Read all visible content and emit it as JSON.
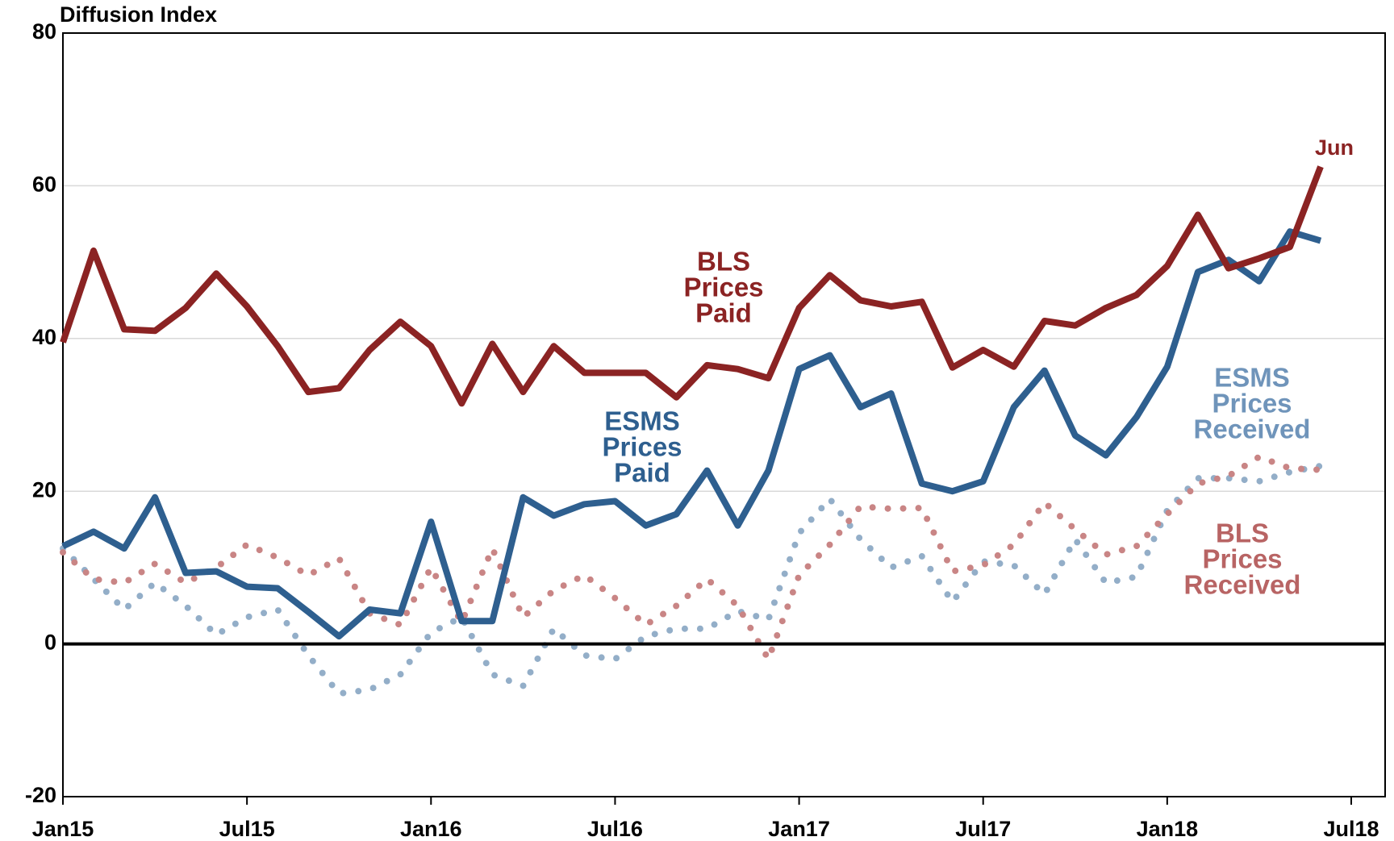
{
  "chart_data": {
    "type": "line",
    "y_axis_title": "Diffusion Index",
    "categories": [
      "Jan15",
      null,
      null,
      null,
      null,
      null,
      "Jul15",
      null,
      null,
      null,
      null,
      null,
      "Jan16",
      null,
      null,
      null,
      null,
      null,
      "Jul16",
      null,
      null,
      null,
      null,
      null,
      "Jan17",
      null,
      null,
      null,
      null,
      null,
      "Jul17",
      null,
      null,
      null,
      null,
      null,
      "Jan18",
      null,
      null,
      null,
      null,
      null,
      "Jul18"
    ],
    "ylim": [
      -20,
      80
    ],
    "yticks": [
      -20,
      0,
      20,
      40,
      60,
      80
    ],
    "grid": true,
    "series": [
      {
        "name": "BLS Prices Paid",
        "color": "#8b2323",
        "style": "solid",
        "values": [
          39.5,
          51.5,
          41.2,
          41,
          44,
          48.5,
          44.2,
          39,
          33,
          33.5,
          38.5,
          42.2,
          39,
          31.5,
          39.3,
          33,
          39,
          35.5,
          35.5,
          35.5,
          32.3,
          36.5,
          36,
          34.8,
          44,
          48.3,
          45,
          44.2,
          44.8,
          36.2,
          38.5,
          36.3,
          42.3,
          41.7,
          44,
          45.7,
          49.5,
          56.2,
          49.2,
          50.5,
          52,
          62.5,
          null
        ]
      },
      {
        "name": "ESMS Prices Paid",
        "color": "#2e5f8f",
        "style": "solid",
        "values": [
          12.8,
          14.7,
          12.5,
          19.2,
          9.3,
          9.5,
          7.5,
          7.3,
          4.2,
          1,
          4.5,
          4,
          16,
          3,
          3,
          19.2,
          16.8,
          18.3,
          18.7,
          15.5,
          17,
          22.7,
          15.5,
          22.7,
          36,
          37.8,
          31,
          32.8,
          21,
          20,
          21.3,
          31,
          35.8,
          27.3,
          24.7,
          29.7,
          36.3,
          48.7,
          50.3,
          47.5,
          54,
          52.8,
          null
        ]
      },
      {
        "name": "ESMS Prices Received",
        "color": "#93aec8",
        "style": "dotted",
        "values": [
          12.5,
          8.5,
          4.5,
          8,
          5,
          1.2,
          3.5,
          4.5,
          -1.5,
          -6.5,
          -6,
          -4,
          1.5,
          3.5,
          -4,
          -5.5,
          2,
          -1.5,
          -2,
          1,
          2,
          2,
          4.3,
          3.2,
          14.5,
          19,
          13.7,
          10,
          11.5,
          5.5,
          10.8,
          10.3,
          6.5,
          13.7,
          8,
          8.8,
          17.5,
          21.7,
          21.7,
          21.3,
          22.5,
          23.3,
          null
        ]
      },
      {
        "name": "BLS Prices Received",
        "color": "#c98585",
        "style": "dotted",
        "values": [
          12,
          8.5,
          8,
          10.5,
          8,
          10,
          13,
          11.3,
          9,
          11.2,
          4,
          2.5,
          10,
          2.8,
          12.5,
          3.5,
          7,
          9,
          6,
          2.5,
          5,
          8.5,
          5,
          -2,
          9,
          13,
          18,
          17.7,
          17.8,
          9.5,
          10.3,
          13,
          18.5,
          15,
          11.7,
          12.8,
          17,
          21,
          22,
          24.5,
          23,
          22.8,
          null
        ]
      }
    ],
    "annotations": [
      {
        "lines": [
          "BLS",
          "Prices",
          "Paid"
        ],
        "color": "#8b2323"
      },
      {
        "lines": [
          "ESMS",
          "Prices",
          "Paid"
        ],
        "color": "#2e5f8f"
      },
      {
        "lines": [
          "ESMS",
          "Prices",
          "Received"
        ],
        "color": "#6f94ba"
      },
      {
        "lines": [
          "BLS",
          "Prices",
          "Received"
        ],
        "color": "#b86464"
      },
      {
        "lines": [
          "Jun"
        ],
        "color": "#8b2323"
      }
    ]
  }
}
